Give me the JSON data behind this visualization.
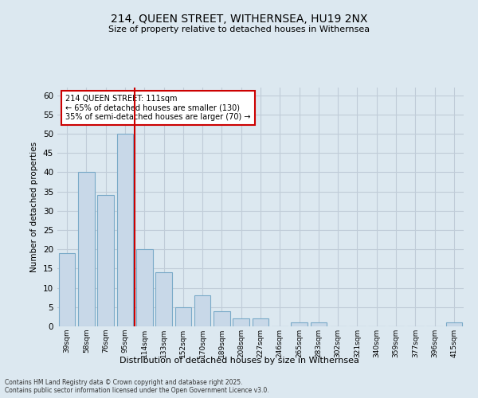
{
  "title1": "214, QUEEN STREET, WITHERNSEA, HU19 2NX",
  "title2": "Size of property relative to detached houses in Withernsea",
  "xlabel": "Distribution of detached houses by size in Withernsea",
  "ylabel": "Number of detached properties",
  "categories": [
    "39sqm",
    "58sqm",
    "76sqm",
    "95sqm",
    "114sqm",
    "133sqm",
    "152sqm",
    "170sqm",
    "189sqm",
    "208sqm",
    "227sqm",
    "246sqm",
    "265sqm",
    "283sqm",
    "302sqm",
    "321sqm",
    "340sqm",
    "359sqm",
    "377sqm",
    "396sqm",
    "415sqm"
  ],
  "values": [
    19,
    40,
    34,
    50,
    20,
    14,
    5,
    8,
    4,
    2,
    2,
    0,
    1,
    1,
    0,
    0,
    0,
    0,
    0,
    0,
    1
  ],
  "bar_color": "#c8d8e8",
  "bar_edge_color": "#7aaac8",
  "vline_x": 3.5,
  "vline_color": "#cc0000",
  "annotation_text": "214 QUEEN STREET: 111sqm\n← 65% of detached houses are smaller (130)\n35% of semi-detached houses are larger (70) →",
  "annotation_box_color": "#ffffff",
  "annotation_box_edge": "#cc0000",
  "ylim": [
    0,
    62
  ],
  "yticks": [
    0,
    5,
    10,
    15,
    20,
    25,
    30,
    35,
    40,
    45,
    50,
    55,
    60
  ],
  "grid_color": "#c0ccd8",
  "background_color": "#dce8f0",
  "plot_bg_color": "#dce8f0",
  "footer_line1": "Contains HM Land Registry data © Crown copyright and database right 2025.",
  "footer_line2": "Contains public sector information licensed under the Open Government Licence v3.0."
}
